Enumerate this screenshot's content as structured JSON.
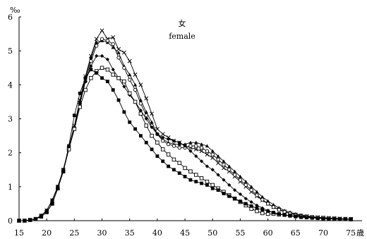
{
  "chart_data": {
    "type": "line",
    "title": "女",
    "subtitle": "female",
    "ylabel": "‰",
    "x_unit": "歳",
    "xlim": [
      15,
      76
    ],
    "ylim": [
      0,
      6
    ],
    "x_ticks": [
      15,
      20,
      25,
      30,
      35,
      40,
      45,
      50,
      55,
      60,
      65,
      70,
      75
    ],
    "y_ticks": [
      0,
      1,
      2,
      3,
      4,
      5,
      6
    ],
    "x_tick_labels": [
      "15",
      "20",
      "25",
      "30",
      "35",
      "40",
      "45",
      "50",
      "55",
      "60",
      "65",
      "70",
      "75"
    ],
    "y_tick_labels": [
      "0",
      "1",
      "2",
      "3",
      "4",
      "5",
      "6"
    ],
    "grid": false,
    "x": [
      15,
      16,
      17,
      18,
      19,
      20,
      21,
      22,
      23,
      24,
      25,
      26,
      27,
      28,
      29,
      30,
      31,
      32,
      33,
      34,
      35,
      36,
      37,
      38,
      39,
      40,
      41,
      42,
      43,
      44,
      45,
      46,
      47,
      48,
      49,
      50,
      51,
      52,
      53,
      54,
      55,
      56,
      57,
      58,
      59,
      60,
      61,
      62,
      63,
      64,
      65,
      66,
      67,
      68,
      69,
      70,
      71,
      72,
      73,
      74,
      75
    ],
    "series": [
      {
        "marker": "x",
        "values": [
          0,
          0,
          0.02,
          0.05,
          0.15,
          0.3,
          0.6,
          1.0,
          1.5,
          2.15,
          2.8,
          3.55,
          4.25,
          4.85,
          5.35,
          5.6,
          5.35,
          5.4,
          5.05,
          4.95,
          4.7,
          4.3,
          4.0,
          3.6,
          3.15,
          2.7,
          2.55,
          2.45,
          2.35,
          2.3,
          2.2,
          2.15,
          2.1,
          2.05,
          1.95,
          1.85,
          1.7,
          1.55,
          1.45,
          1.3,
          1.15,
          1.0,
          0.85,
          0.72,
          0.6,
          0.5,
          0.4,
          0.33,
          0.27,
          0.22,
          0.18,
          0.15,
          0.13,
          0.11,
          0.1,
          0.09,
          0.08,
          0.07,
          0.06,
          0.05,
          0.05
        ]
      },
      {
        "marker": "triangle",
        "values": [
          0,
          0,
          0.02,
          0.05,
          0.15,
          0.3,
          0.6,
          1.0,
          1.5,
          2.1,
          2.75,
          3.5,
          4.2,
          4.8,
          5.25,
          5.3,
          5.25,
          5.1,
          4.95,
          4.55,
          4.3,
          4.0,
          3.55,
          3.2,
          2.9,
          2.55,
          2.4,
          2.3,
          2.25,
          2.25,
          2.25,
          2.3,
          2.3,
          2.25,
          2.2,
          2.05,
          1.9,
          1.75,
          1.6,
          1.45,
          1.3,
          1.15,
          1.0,
          0.85,
          0.7,
          0.58,
          0.47,
          0.38,
          0.3,
          0.25,
          0.2,
          0.17,
          0.14,
          0.12,
          0.1,
          0.09,
          0.08,
          0.07,
          0.06,
          0.05,
          0.05
        ]
      },
      {
        "marker": "circle",
        "values": [
          0,
          0,
          0.02,
          0.05,
          0.15,
          0.3,
          0.6,
          1.0,
          1.5,
          2.1,
          2.7,
          3.45,
          4.1,
          4.7,
          5.15,
          5.35,
          5.3,
          5.2,
          4.8,
          4.5,
          4.15,
          3.85,
          3.45,
          3.1,
          2.8,
          2.55,
          2.35,
          2.25,
          2.2,
          2.15,
          2.15,
          2.2,
          2.2,
          2.15,
          2.05,
          1.95,
          1.8,
          1.65,
          1.5,
          1.35,
          1.2,
          1.05,
          0.9,
          0.75,
          0.62,
          0.5,
          0.4,
          0.32,
          0.26,
          0.21,
          0.17,
          0.14,
          0.12,
          0.1,
          0.09,
          0.08,
          0.07,
          0.06,
          0.05,
          0.05,
          0.05
        ]
      },
      {
        "marker": "diamond",
        "values": [
          0,
          0,
          0.02,
          0.05,
          0.15,
          0.3,
          0.6,
          1.0,
          1.5,
          2.15,
          2.75,
          3.45,
          4.1,
          4.55,
          4.85,
          4.85,
          4.75,
          4.45,
          4.2,
          3.95,
          3.7,
          3.5,
          3.25,
          3.0,
          2.75,
          2.55,
          2.45,
          2.4,
          2.35,
          2.3,
          2.2,
          2.05,
          1.9,
          1.75,
          1.6,
          1.5,
          1.35,
          1.2,
          1.05,
          0.9,
          0.78,
          0.65,
          0.55,
          0.45,
          0.37,
          0.3,
          0.24,
          0.2,
          0.17,
          0.14,
          0.12,
          0.1,
          0.09,
          0.08,
          0.07,
          0.06,
          0.05,
          0.05,
          0.04,
          0.04,
          0.04
        ]
      },
      {
        "marker": "square-open",
        "values": [
          0,
          0,
          0.02,
          0.05,
          0.12,
          0.25,
          0.5,
          0.95,
          1.45,
          2.1,
          2.7,
          3.35,
          3.85,
          4.2,
          4.4,
          4.5,
          4.45,
          4.3,
          4.2,
          4.1,
          3.75,
          3.5,
          3.15,
          2.8,
          2.5,
          2.3,
          2.1,
          1.95,
          1.8,
          1.7,
          1.55,
          1.45,
          1.35,
          1.25,
          1.15,
          1.05,
          0.95,
          0.85,
          0.75,
          0.65,
          0.55,
          0.45,
          0.35,
          0.28,
          0.22,
          0.2,
          0.2,
          0.18,
          0.17,
          0.15,
          0.14,
          0.12,
          0.11,
          0.1,
          0.09,
          0.08,
          0.07,
          0.06,
          0.05,
          0.05,
          0.04
        ]
      },
      {
        "marker": "square-filled",
        "values": [
          0,
          0,
          0.02,
          0.05,
          0.12,
          0.25,
          0.5,
          0.95,
          1.45,
          2.2,
          3.1,
          3.75,
          4.2,
          4.45,
          4.35,
          4.2,
          4.1,
          3.85,
          3.55,
          3.2,
          2.9,
          2.7,
          2.5,
          2.3,
          2.1,
          1.9,
          1.75,
          1.6,
          1.5,
          1.4,
          1.3,
          1.2,
          1.15,
          1.1,
          1.05,
          0.95,
          0.9,
          0.8,
          0.72,
          0.65,
          0.57,
          0.5,
          0.43,
          0.37,
          0.32,
          0.28,
          0.24,
          0.2,
          0.17,
          0.14,
          0.12,
          0.1,
          0.09,
          0.08,
          0.07,
          0.06,
          0.05,
          0.05,
          0.04,
          0.04,
          0.04
        ]
      }
    ]
  }
}
